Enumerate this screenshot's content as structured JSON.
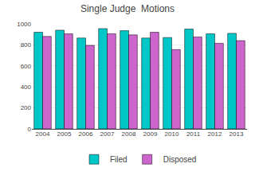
{
  "chart_data": {
    "type": "bar",
    "title": "Single Judge  Motions",
    "categories": [
      "2004",
      "2005",
      "2006",
      "2007",
      "2008",
      "2009",
      "2010",
      "2011",
      "2012",
      "2013"
    ],
    "series": [
      {
        "name": "Filed",
        "color": "#00C8C8",
        "values": [
          920,
          940,
          865,
          955,
          935,
          865,
          870,
          950,
          905,
          910
        ]
      },
      {
        "name": "Disposed",
        "color": "#CC66CC",
        "values": [
          880,
          905,
          795,
          905,
          895,
          920,
          755,
          875,
          815,
          840
        ]
      }
    ],
    "ylim": [
      0,
      1000
    ],
    "yticks": [
      0,
      200,
      400,
      600,
      800,
      1000
    ],
    "grid": true,
    "legend": "bottom"
  }
}
